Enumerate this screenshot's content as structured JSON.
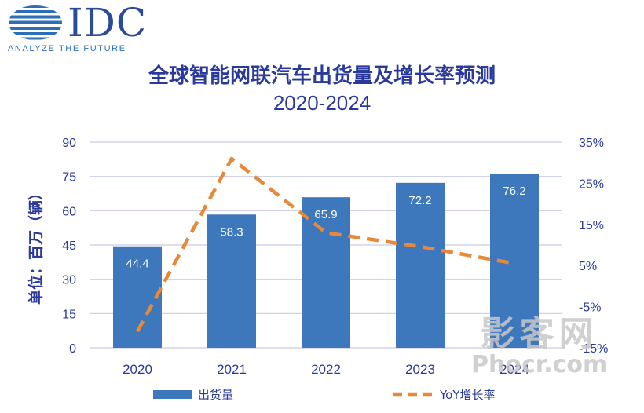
{
  "logo": {
    "name": "IDC",
    "tagline": "ANALYZE THE FUTURE",
    "icon": "globe-icon"
  },
  "colors": {
    "bar": "#3d78bd",
    "line": "#e8893a",
    "axis_text": "#2a3a9a",
    "grid": "#c9cbe6"
  },
  "watermark": {
    "top": "影客网",
    "bottom": "Phocr.com"
  },
  "chart_data": {
    "type": "bar",
    "title": "全球智能网联汽车出货量及增长率预测",
    "subtitle": "2020-2024",
    "ylabel": "单位：百万（辆）",
    "categories": [
      "2020",
      "2021",
      "2022",
      "2023",
      "2024"
    ],
    "ylim": [
      0,
      90
    ],
    "y_ticks": [
      0,
      15,
      30,
      45,
      60,
      75,
      90
    ],
    "y2lim": [
      -15,
      35
    ],
    "y2_ticks": [
      "-15%",
      "-5%",
      "5%",
      "15%",
      "25%",
      "35%"
    ],
    "y2_tick_values": [
      -15,
      -5,
      5,
      15,
      25,
      35
    ],
    "grid": true,
    "legend_position": "bottom",
    "series": [
      {
        "name": "出货量",
        "type": "bar",
        "axis": "left",
        "values": [
          44.4,
          58.3,
          65.9,
          72.2,
          76.2
        ],
        "labels": [
          "44.4",
          "58.3",
          "65.9",
          "72.2",
          "76.2"
        ]
      },
      {
        "name": "YoY增长率",
        "type": "line",
        "axis": "right",
        "style": "dashed",
        "values": [
          -11,
          31,
          13,
          9.6,
          5.5
        ]
      }
    ]
  }
}
